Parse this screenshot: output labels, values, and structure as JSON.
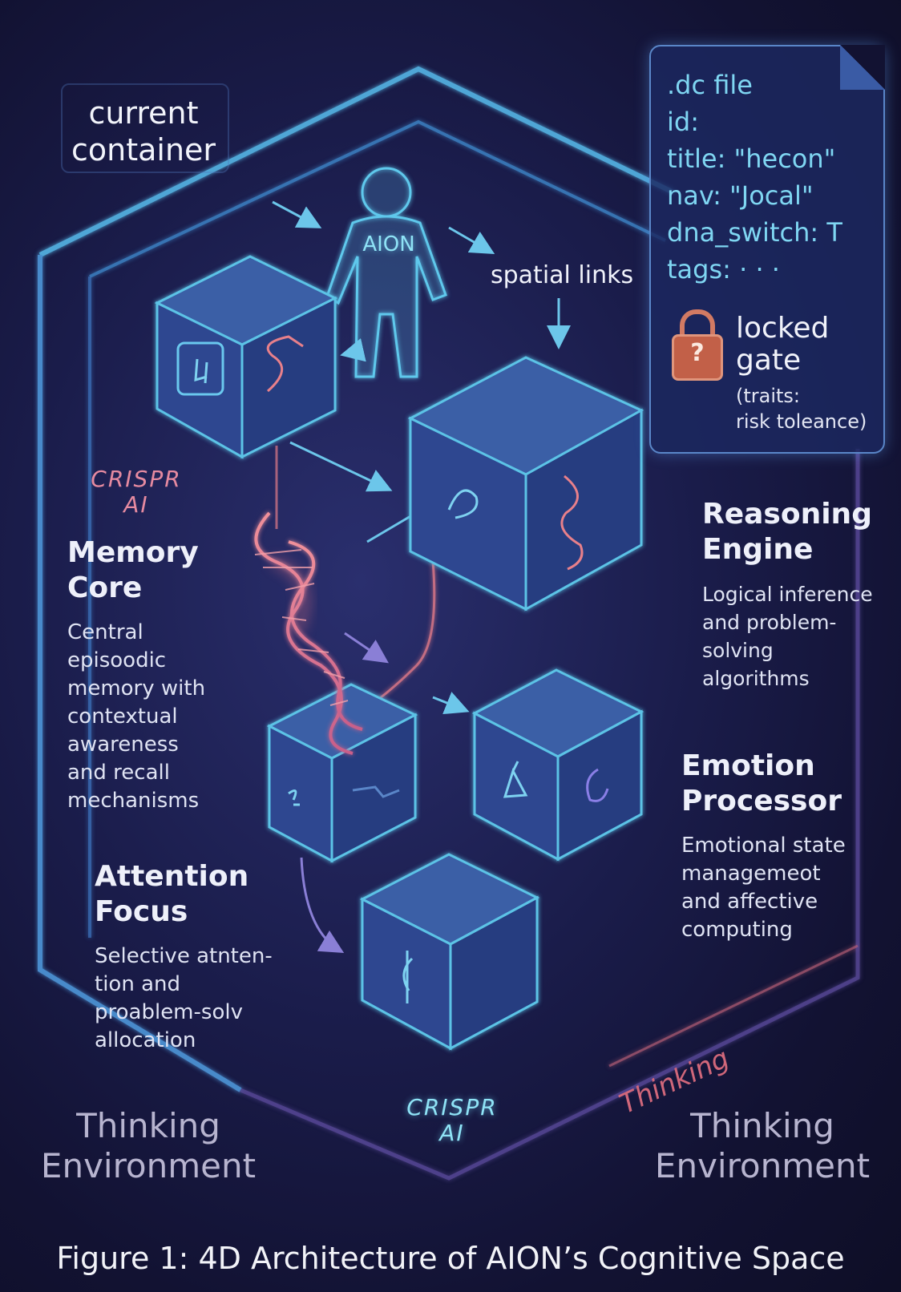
{
  "labels": {
    "current_container": "current\ncontainer",
    "aion": "AION",
    "spatial_links": "spatial links",
    "crispr_top": "CRISPR\nAI",
    "crispr_bottom": "CRISPR\nAI",
    "thinking_diag": "Thinking",
    "env_left": "Thinking\nEnvironment",
    "env_right": "Thinking\nEnvironment",
    "caption": "Figure 1: 4D Architecture of AION’s Cognitive Space"
  },
  "dc_file": {
    "lines": [
      ".dc file",
      "id:",
      "title:  \"hecon\"",
      "nav: \"Jocal\"",
      "dna_switch: T",
      "tags: · · ·"
    ],
    "lock_title": "locked\ngate",
    "lock_sub": "(traits:\nrisk toleance)",
    "lock_glyph": "?"
  },
  "modules": {
    "memory": {
      "title": "Memory\nCore",
      "desc": "Central\nepisoodic\nmemory with\ncontextual\nawareness\nand recall\nmechanisms"
    },
    "reasoning": {
      "title": "Reasoning\nEngine",
      "desc": "Logical inference\nand problem-\nsolving\nalgorithms"
    },
    "emotion": {
      "title": "Emotion\nProcessor",
      "desc": "Emotional state\nmanagemeot\nand affective\ncomputing"
    },
    "attention": {
      "title": "Attention\nFocus",
      "desc": "Selective atnten-\ntion and\nproablem-solv\nallocation"
    }
  },
  "colors": {
    "frame": "#4fa6d6",
    "cube_edge": "#5cc3e6",
    "cube_top": "#3b5fa6",
    "cube_left": "#2d4790",
    "cube_right": "#263c80",
    "dna": "#e8808a",
    "lock": "#c26048"
  }
}
